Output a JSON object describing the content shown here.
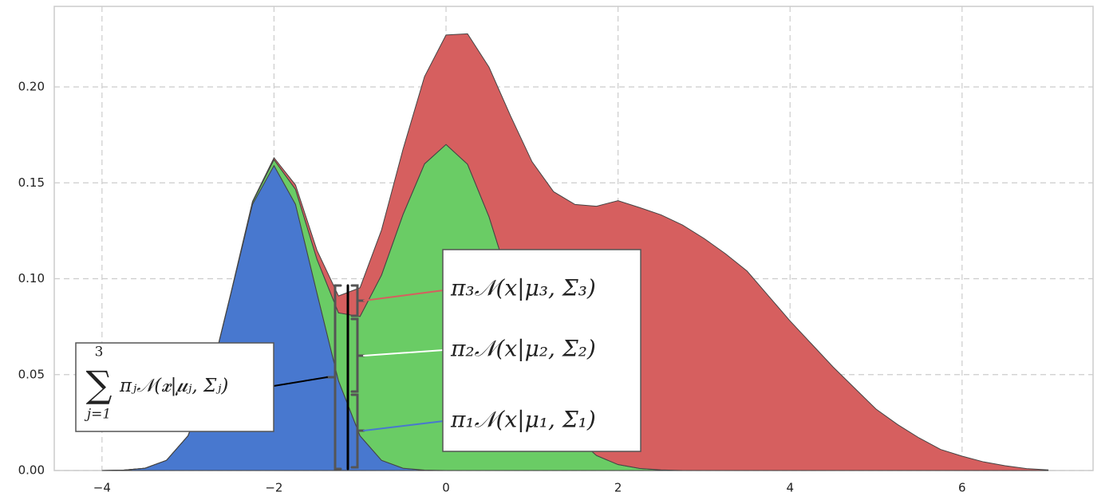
{
  "chart_data": {
    "type": "stacked-area",
    "x": [
      -4,
      -3.75,
      -3.5,
      -3.25,
      -3,
      -2.75,
      -2.5,
      -2.25,
      -2,
      -1.75,
      -1.5,
      -1.25,
      -1,
      -0.75,
      -0.5,
      -0.25,
      0,
      0.25,
      0.5,
      0.75,
      1,
      1.25,
      1.5,
      1.75,
      2,
      2.25,
      2.5,
      2.75,
      3,
      3.25,
      3.5,
      3.75,
      4,
      4.25,
      4.5,
      4.75,
      5,
      5.25,
      5.5,
      5.75,
      6,
      6.25,
      6.5,
      6.75,
      7
    ],
    "series": [
      {
        "name": "π₁𝒩(x|μ₁, Σ₁)",
        "color": "#4878cf",
        "values": [
          0,
          0.0002,
          0.0012,
          0.0053,
          0.0181,
          0.0468,
          0.0924,
          0.1388,
          0.159,
          0.1388,
          0.0924,
          0.0468,
          0.0181,
          0.0053,
          0.0012,
          0.0002,
          0,
          0,
          0,
          0,
          0,
          0,
          0,
          0,
          0,
          0,
          0,
          0,
          0,
          0,
          0,
          0,
          0,
          0,
          0,
          0,
          0,
          0,
          0,
          0,
          0,
          0,
          0,
          0,
          0
        ]
      },
      {
        "name": "π₂𝒩(x|μ₂, Σ₂)",
        "color": "#6acc65",
        "values": [
          0,
          0,
          0,
          0,
          0,
          0.0001,
          0.0003,
          0.0011,
          0.0031,
          0.0078,
          0.0177,
          0.0354,
          0.0622,
          0.0966,
          0.1323,
          0.1597,
          0.17,
          0.1597,
          0.1323,
          0.0966,
          0.0622,
          0.0354,
          0.0177,
          0.0078,
          0.0031,
          0.0011,
          0.0003,
          0,
          0,
          0,
          0,
          0,
          0,
          0,
          0,
          0,
          0,
          0,
          0,
          0,
          0,
          0,
          0,
          0,
          0
        ]
      },
      {
        "name": "π₃𝒩(x|μ₃, Σ₃)",
        "color": "#d65f5f",
        "values": [
          0,
          0,
          0,
          0,
          0,
          0,
          0.0001,
          0.0004,
          0.001,
          0.0023,
          0.0047,
          0.0088,
          0.015,
          0.0235,
          0.034,
          0.0455,
          0.0571,
          0.068,
          0.078,
          0.0883,
          0.0988,
          0.11,
          0.121,
          0.13,
          0.1376,
          0.136,
          0.133,
          0.128,
          0.121,
          0.113,
          0.104,
          0.091,
          0.078,
          0.066,
          0.054,
          0.043,
          0.032,
          0.024,
          0.017,
          0.011,
          0.0075,
          0.0045,
          0.0025,
          0.001,
          0.0003
        ]
      }
    ],
    "xlim": [
      -4.555,
      7.523
    ],
    "ylim": [
      0,
      0.242
    ],
    "xticks": [
      {
        "value": -4,
        "label": "−4"
      },
      {
        "value": -2,
        "label": "−2"
      },
      0,
      2,
      4,
      6
    ],
    "yticks": [
      {
        "value": 0,
        "label": "0.00"
      },
      {
        "value": 0.05,
        "label": "0.05"
      },
      {
        "value": 0.1,
        "label": "0.10"
      },
      {
        "value": 0.15,
        "label": "0.15"
      },
      {
        "value": 0.2,
        "label": "0.20"
      }
    ],
    "grid": true,
    "sum_symbol": "∑",
    "sum_upper": "3",
    "sum_lower": "j=1",
    "sum_body": "πⱼ𝒩(𝒙|𝝁ⱼ, Σⱼ)"
  }
}
